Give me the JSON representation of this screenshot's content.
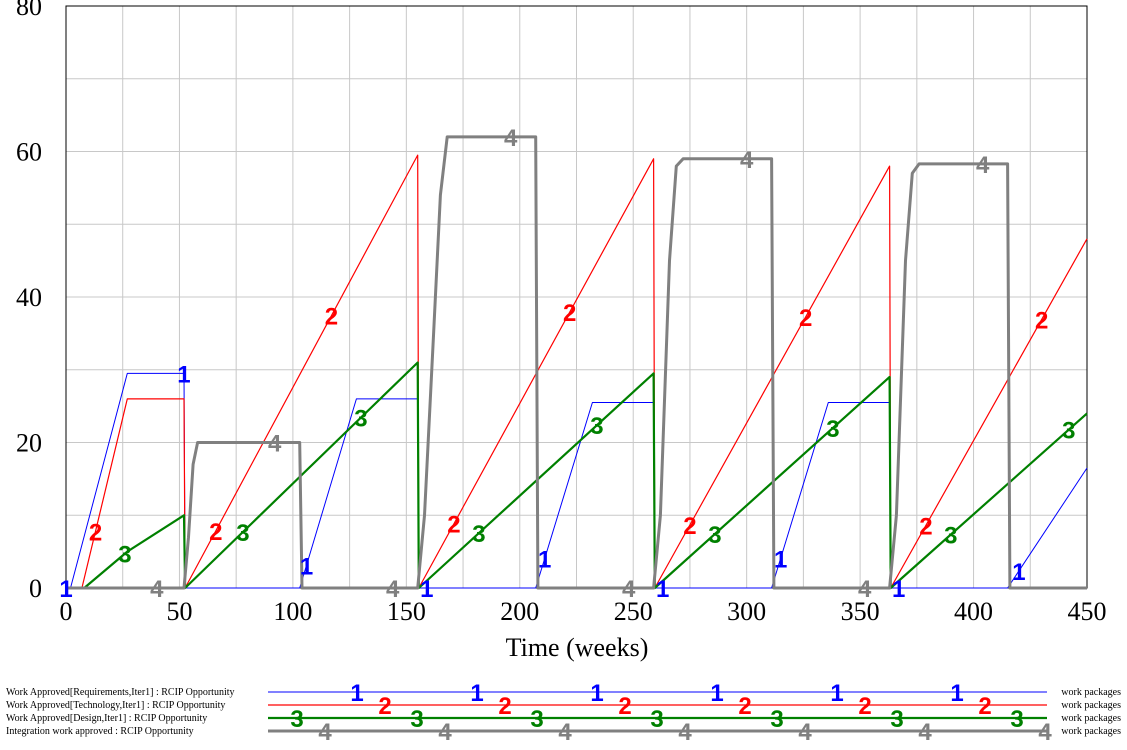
{
  "chart_data": {
    "type": "line",
    "xlabel": "Time (weeks)",
    "ylabel": "",
    "xlim": [
      0,
      450
    ],
    "ylim": [
      0,
      80
    ],
    "xticks": [
      0,
      50,
      100,
      150,
      200,
      250,
      300,
      350,
      400,
      450
    ],
    "yticks": [
      0,
      20,
      40,
      60,
      80
    ],
    "grid": true,
    "series": [
      {
        "name": "Work Approved[Requirements,Iter1] : RCIP Opportunity",
        "marker": "1",
        "units": "work packages",
        "color": "#0000ff",
        "points": [
          [
            0,
            0
          ],
          [
            2,
            0
          ],
          [
            27,
            29.5
          ],
          [
            52,
            29.5
          ],
          [
            52.5,
            0
          ],
          [
            103,
            0
          ],
          [
            128,
            26
          ],
          [
            155,
            26
          ],
          [
            155.5,
            0
          ],
          [
            207,
            0
          ],
          [
            232,
            25.5
          ],
          [
            259,
            25.5
          ],
          [
            259.5,
            0
          ],
          [
            311,
            0
          ],
          [
            336,
            25.5
          ],
          [
            363,
            25.5
          ],
          [
            363.5,
            0
          ],
          [
            415,
            0
          ],
          [
            450,
            16.5
          ]
        ],
        "marker_x": [
          0,
          52,
          106,
          159,
          211,
          263,
          315,
          367,
          420
        ]
      },
      {
        "name": "Work Approved[Technology,Iter1] : RCIP Opportunity",
        "marker": "2",
        "units": "work packages",
        "color": "#ff0000",
        "points": [
          [
            0,
            0
          ],
          [
            7,
            0
          ],
          [
            27,
            26
          ],
          [
            52,
            26
          ],
          [
            52.5,
            0
          ],
          [
            155,
            59.5
          ],
          [
            155.5,
            0
          ],
          [
            259,
            59
          ],
          [
            259.5,
            0
          ],
          [
            363,
            58
          ],
          [
            363.5,
            0
          ],
          [
            450,
            48
          ]
        ],
        "marker_x": [
          13,
          66,
          117,
          171,
          222,
          275,
          326,
          379,
          430
        ]
      },
      {
        "name": "Work Approved[Design,Iter1] : RCIP Opportunity",
        "marker": "3",
        "units": "work packages",
        "color": "#008000",
        "points": [
          [
            0,
            0
          ],
          [
            8,
            0
          ],
          [
            27,
            5
          ],
          [
            52,
            10
          ],
          [
            52.5,
            0
          ],
          [
            155,
            31
          ],
          [
            155.5,
            0
          ],
          [
            259,
            29.5
          ],
          [
            259.5,
            0
          ],
          [
            363,
            29
          ],
          [
            363.5,
            0
          ],
          [
            450,
            24
          ]
        ],
        "marker_x": [
          26,
          78,
          130,
          182,
          234,
          286,
          338,
          390,
          442
        ]
      },
      {
        "name": "Integration work approved : RCIP Opportunity",
        "marker": "4",
        "units": "work packages",
        "color": "#808080",
        "points": [
          [
            0,
            0
          ],
          [
            52,
            0
          ],
          [
            54,
            7
          ],
          [
            56,
            17
          ],
          [
            58,
            20
          ],
          [
            103,
            20
          ],
          [
            104,
            0
          ],
          [
            155,
            0
          ],
          [
            158,
            10
          ],
          [
            162,
            35
          ],
          [
            165,
            54
          ],
          [
            168,
            62
          ],
          [
            207,
            62
          ],
          [
            208,
            0
          ],
          [
            259,
            0
          ],
          [
            262,
            10
          ],
          [
            266,
            45
          ],
          [
            269,
            58
          ],
          [
            272,
            59
          ],
          [
            311,
            59
          ],
          [
            312,
            0
          ],
          [
            363,
            0
          ],
          [
            366,
            10
          ],
          [
            370,
            45
          ],
          [
            373,
            57
          ],
          [
            376,
            58.3
          ],
          [
            415,
            58.3
          ],
          [
            416,
            0
          ],
          [
            450,
            0
          ]
        ],
        "marker_x": [
          40,
          92,
          144,
          196,
          248,
          300,
          352,
          404
        ]
      }
    ]
  }
}
